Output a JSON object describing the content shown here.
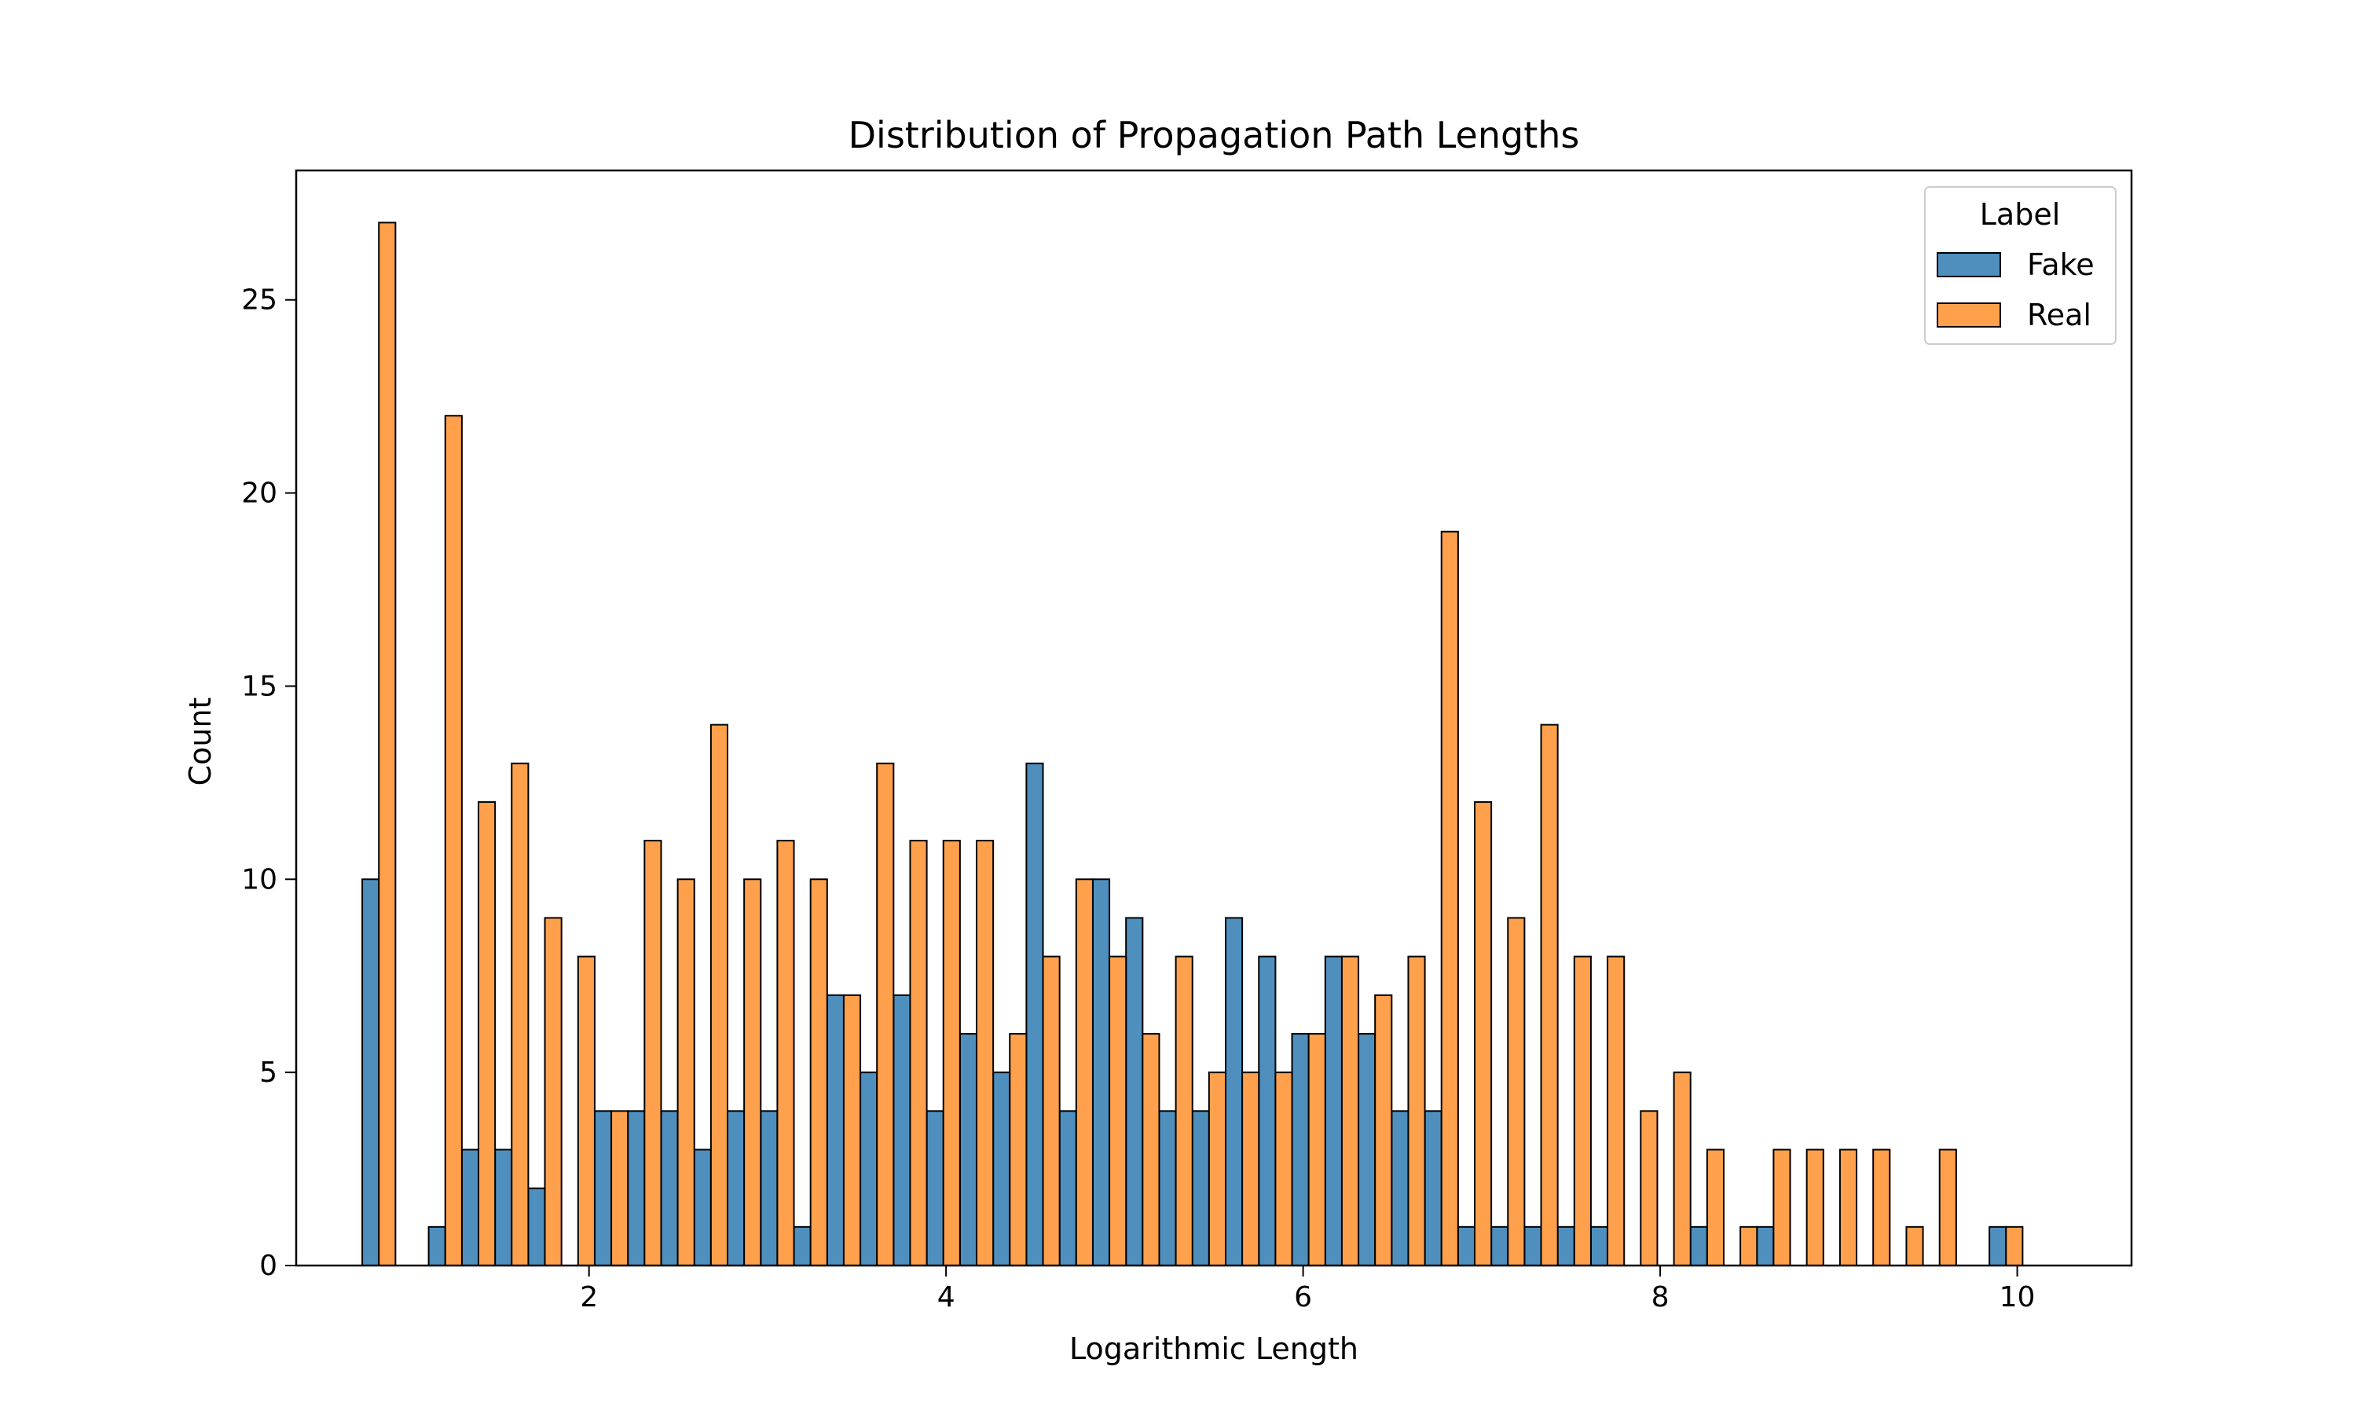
{
  "chart_data": {
    "type": "bar",
    "title": "Distribution of Propagation Path Lengths",
    "xlabel": "Logarithmic Length",
    "ylabel": "Count",
    "xlim": [
      0.36,
      10.64
    ],
    "ylim": [
      0,
      28.35
    ],
    "xticks": [
      2,
      4,
      6,
      8,
      10
    ],
    "yticks": [
      0,
      5,
      10,
      15,
      20,
      25
    ],
    "bin_width": 0.186,
    "bin_start": 0.73,
    "legend": {
      "title": "Label",
      "placement": "upper-right"
    },
    "series": [
      {
        "name": "Fake",
        "color": "#4e8fbe",
        "values": [
          10,
          0,
          1,
          3,
          3,
          2,
          0,
          4,
          4,
          4,
          3,
          4,
          4,
          1,
          7,
          5,
          7,
          4,
          6,
          5,
          13,
          4,
          10,
          9,
          4,
          4,
          9,
          8,
          6,
          8,
          6,
          4,
          4,
          1,
          1,
          1,
          1,
          1,
          0,
          0,
          1,
          0,
          1,
          0,
          0,
          0,
          0,
          0,
          0,
          1
        ]
      },
      {
        "name": "Real",
        "color": "#ffa04c",
        "values": [
          27,
          0,
          22,
          12,
          13,
          9,
          8,
          4,
          11,
          10,
          14,
          10,
          11,
          10,
          7,
          13,
          11,
          11,
          11,
          6,
          8,
          10,
          8,
          6,
          8,
          5,
          5,
          5,
          6,
          8,
          7,
          8,
          19,
          12,
          9,
          14,
          8,
          8,
          4,
          5,
          3,
          1,
          3,
          3,
          3,
          3,
          1,
          3,
          0,
          1
        ]
      }
    ]
  }
}
